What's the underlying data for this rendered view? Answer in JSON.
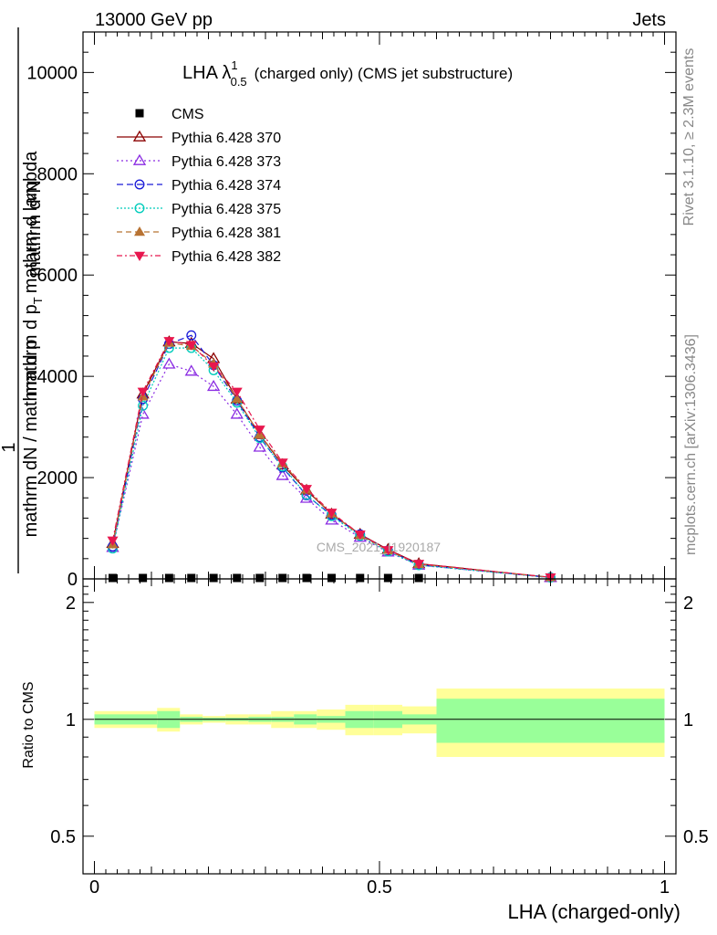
{
  "header": {
    "left": "13000 GeV pp",
    "right": "Jets"
  },
  "side_text": {
    "rivet": "Rivet 3.1.10, ≥ 2.3M events",
    "mcplots": "mcplots.cern.ch [arXiv:1306.3436]"
  },
  "watermark": "CMS_2021_I1920187",
  "chart_data": [
    {
      "type": "line",
      "title": "LHA λ",
      "title_sup": "1",
      "title_sub": "0.5",
      "title_suffix": "(charged only) (CMS jet substructure)",
      "ylabel_num": "1",
      "ylabel_num2": "mathrm d²N",
      "ylabel_den": "mathrm dN / mathrm d p",
      "ylabel_den2": "mathrm d p",
      "ylabel_den_sub": "T",
      "ylabel_den_suffix": "mathrm d lambda",
      "xlim": [
        -0.02,
        1.02
      ],
      "ylim": [
        0,
        10800
      ],
      "yticks": [
        0,
        2000,
        4000,
        6000,
        8000,
        10000
      ],
      "ytick_labels": [
        "0",
        "2000",
        "4000",
        "6000",
        "8000",
        "10000"
      ],
      "x": [
        0.032,
        0.085,
        0.131,
        0.17,
        0.209,
        0.25,
        0.29,
        0.33,
        0.372,
        0.416,
        0.466,
        0.515,
        0.569,
        0.8
      ],
      "series": [
        {
          "name": "CMS",
          "color": "#000000",
          "marker": "square",
          "values": [
            5,
            5,
            5,
            5,
            5,
            5,
            5,
            5,
            5,
            5,
            5,
            5,
            5,
            5
          ]
        },
        {
          "name": "Pythia 6.428 370",
          "color": "#8b0000",
          "marker": "triangle-open",
          "dash": "",
          "values": [
            700,
            3650,
            4680,
            4650,
            4350,
            3550,
            2850,
            2250,
            1750,
            1280,
            880,
            580,
            300,
            30
          ]
        },
        {
          "name": "Pythia 6.428 373",
          "color": "#8a2be2",
          "marker": "triangle-open",
          "dash": "2,3",
          "values": [
            620,
            3250,
            4240,
            4100,
            3800,
            3250,
            2600,
            2040,
            1590,
            1160,
            820,
            530,
            270,
            25
          ]
        },
        {
          "name": "Pythia 6.428 374",
          "color": "#1a1ad8",
          "marker": "circle-open",
          "dash": "7,4",
          "values": [
            640,
            3550,
            4640,
            4810,
            4220,
            3520,
            2800,
            2200,
            1650,
            1260,
            880,
            560,
            280,
            28
          ]
        },
        {
          "name": "Pythia 6.428 375",
          "color": "#00ccbb",
          "marker": "circle-open",
          "dash": "2,2",
          "values": [
            600,
            3420,
            4560,
            4560,
            4120,
            3480,
            2780,
            2220,
            1660,
            1240,
            850,
            540,
            270,
            27
          ]
        },
        {
          "name": "Pythia 6.428 381",
          "color": "#b87333",
          "marker": "triangle-filled",
          "dash": "6,4",
          "values": [
            680,
            3600,
            4660,
            4600,
            4250,
            3550,
            2850,
            2280,
            1760,
            1290,
            860,
            560,
            290,
            30
          ]
        },
        {
          "name": "Pythia 6.428 382",
          "color": "#e8174e",
          "marker": "triangle-down-filled",
          "dash": "6,3,2,3",
          "values": [
            760,
            3700,
            4700,
            4620,
            4200,
            3700,
            2950,
            2300,
            1780,
            1310,
            880,
            570,
            300,
            32
          ]
        }
      ]
    },
    {
      "type": "area",
      "ylabel": "Ratio to CMS",
      "xlabel": "LHA (charged-only)",
      "xlim": [
        -0.02,
        1.02
      ],
      "ylim": [
        0.4,
        2.3
      ],
      "xticks": [
        0,
        0.5,
        1
      ],
      "xtick_labels": [
        "0",
        "0.5",
        "1"
      ],
      "yticks": [
        0.5,
        1,
        2
      ],
      "ytick_labels": [
        "0.5",
        "1",
        "2"
      ],
      "bin_edges": [
        0.0,
        0.06,
        0.11,
        0.15,
        0.19,
        0.23,
        0.27,
        0.31,
        0.35,
        0.39,
        0.44,
        0.49,
        0.54,
        0.6,
        1.0
      ],
      "band_stat": [
        0.03,
        0.03,
        0.05,
        0.015,
        0.01,
        0.01,
        0.015,
        0.015,
        0.03,
        0.02,
        0.05,
        0.05,
        0.03,
        0.13
      ],
      "band_total": [
        0.05,
        0.05,
        0.07,
        0.03,
        0.02,
        0.03,
        0.03,
        0.05,
        0.05,
        0.06,
        0.09,
        0.09,
        0.08,
        0.2
      ],
      "colors": {
        "stat": "#99ff99",
        "total": "#ffff99"
      }
    }
  ]
}
